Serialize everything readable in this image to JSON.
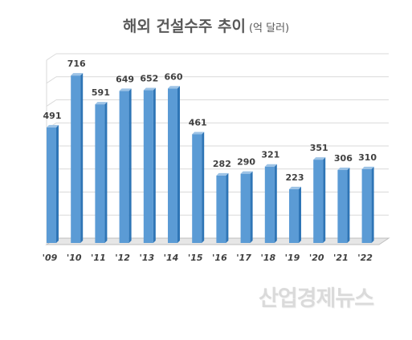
{
  "chart_data": {
    "type": "bar",
    "title": "해외 건설수주 추이",
    "unit": "(억 달러)",
    "categories": [
      "'09",
      "'10",
      "'11",
      "'12",
      "'13",
      "'14",
      "'15",
      "'16",
      "'17",
      "'18",
      "'19",
      "'20",
      "'21",
      "'22"
    ],
    "values": [
      491,
      716,
      591,
      649,
      652,
      660,
      461,
      282,
      290,
      321,
      223,
      351,
      306,
      310
    ],
    "ylim": [
      0,
      800
    ],
    "grid": true,
    "bar_color": "#5b9bd5",
    "bar_edge_color": "#2e75b6"
  },
  "watermark": "산업경제뉴스"
}
